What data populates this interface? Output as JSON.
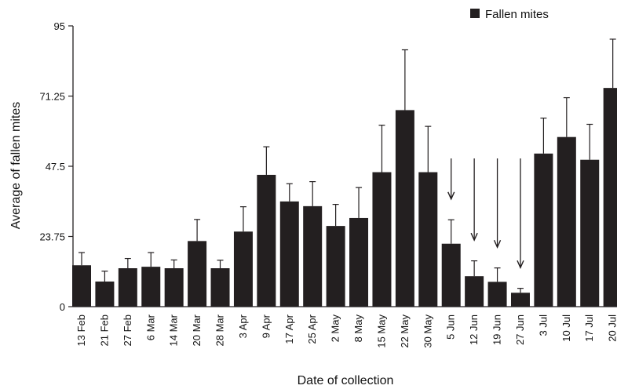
{
  "chart_data": {
    "type": "bar",
    "title": "",
    "xlabel": "Date of collection",
    "ylabel": "Average of fallen mites",
    "ylim": [
      0,
      95
    ],
    "yticks": [
      "0",
      "23.75",
      "47.5",
      "71.25",
      "95"
    ],
    "grid": false,
    "legend_position": "top-right",
    "categories": [
      "13 Feb",
      "21 Feb",
      "27 Feb",
      "6 Mar",
      "14 Mar",
      "20 Mar",
      "28 Mar",
      "3 Apr",
      "9 Apr",
      "17 Apr",
      "25 Apr",
      "2 May",
      "8 May",
      "15 May",
      "22 May",
      "30 May",
      "5 Jun",
      "12 Jun",
      "19 Jun",
      "27 Jun",
      "3 Jul",
      "10 Jul",
      "17 Jul",
      "20 Jul"
    ],
    "series": [
      {
        "name": "Fallen mites",
        "color": "#231f20",
        "values": [
          14,
          8.5,
          13,
          13.5,
          13,
          22.2,
          13,
          25.4,
          44.6,
          35.6,
          34,
          27.3,
          30,
          45.5,
          66.5,
          45.5,
          21.3,
          10.3,
          8.4,
          4.7,
          51.8,
          57.4,
          49.7,
          74
        ],
        "error": [
          4.3,
          3.5,
          3.3,
          4.8,
          2.8,
          7.3,
          2.7,
          8.4,
          9.5,
          6,
          8.3,
          7.3,
          10.3,
          15.9,
          20.4,
          15.5,
          8.1,
          5.2,
          4.7,
          1.5,
          12,
          13.3,
          12,
          16.5
        ]
      }
    ],
    "annotations": {
      "arrows_at": [
        "5 Jun",
        "12 Jun",
        "19 Jun",
        "27 Jun"
      ]
    }
  }
}
